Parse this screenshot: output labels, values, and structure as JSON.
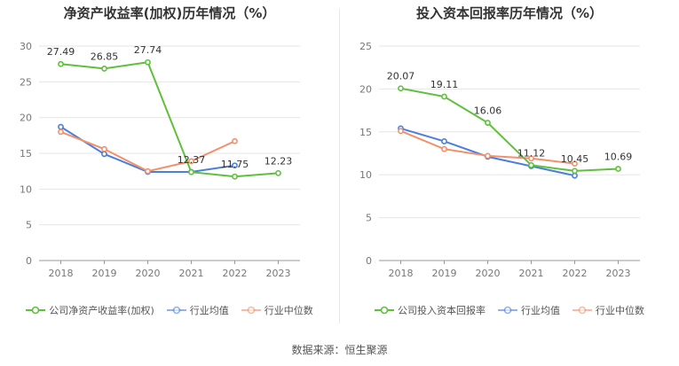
{
  "source": "数据来源：恒生聚源",
  "chart_data": [
    {
      "type": "line",
      "title": "净资产收益率(加权)历年情况（%）",
      "categories": [
        "2018",
        "2019",
        "2020",
        "2021",
        "2022",
        "2023"
      ],
      "ylim": [
        0,
        30
      ],
      "yticks": [
        0,
        5,
        10,
        15,
        20,
        25,
        30
      ],
      "grid": true,
      "legend_position": "bottom",
      "series": [
        {
          "name": "公司净资产收益率(加权)",
          "color": "#5ec03b",
          "values": [
            27.49,
            26.85,
            27.74,
            12.37,
            11.75,
            12.23
          ],
          "labels": [
            "27.49",
            "26.85",
            "27.74",
            "12.37",
            "11.75",
            "12.23"
          ]
        },
        {
          "name": "行业均值",
          "color": "#4a7fdd",
          "values": [
            18.7,
            14.9,
            12.4,
            12.4,
            13.3,
            null
          ]
        },
        {
          "name": "行业中位数",
          "color": "#f2906c",
          "values": [
            18.0,
            15.6,
            12.5,
            13.9,
            16.7,
            null
          ]
        }
      ]
    },
    {
      "type": "line",
      "title": "投入资本回报率历年情况（%）",
      "categories": [
        "2018",
        "2019",
        "2020",
        "2021",
        "2022",
        "2023"
      ],
      "ylim": [
        0,
        25
      ],
      "yticks": [
        0,
        5,
        10,
        15,
        20,
        25
      ],
      "grid": true,
      "legend_position": "bottom",
      "series": [
        {
          "name": "公司投入资本回报率",
          "color": "#5ec03b",
          "values": [
            20.07,
            19.11,
            16.06,
            11.12,
            10.45,
            10.69
          ],
          "labels": [
            "20.07",
            "19.11",
            "16.06",
            "11.12",
            "10.45",
            "10.69"
          ]
        },
        {
          "name": "行业均值",
          "color": "#4a7fdd",
          "values": [
            15.4,
            13.9,
            12.1,
            11.0,
            9.9,
            null
          ]
        },
        {
          "name": "行业中位数",
          "color": "#f2906c",
          "values": [
            15.1,
            13.0,
            12.2,
            11.9,
            11.3,
            null
          ]
        }
      ]
    }
  ]
}
